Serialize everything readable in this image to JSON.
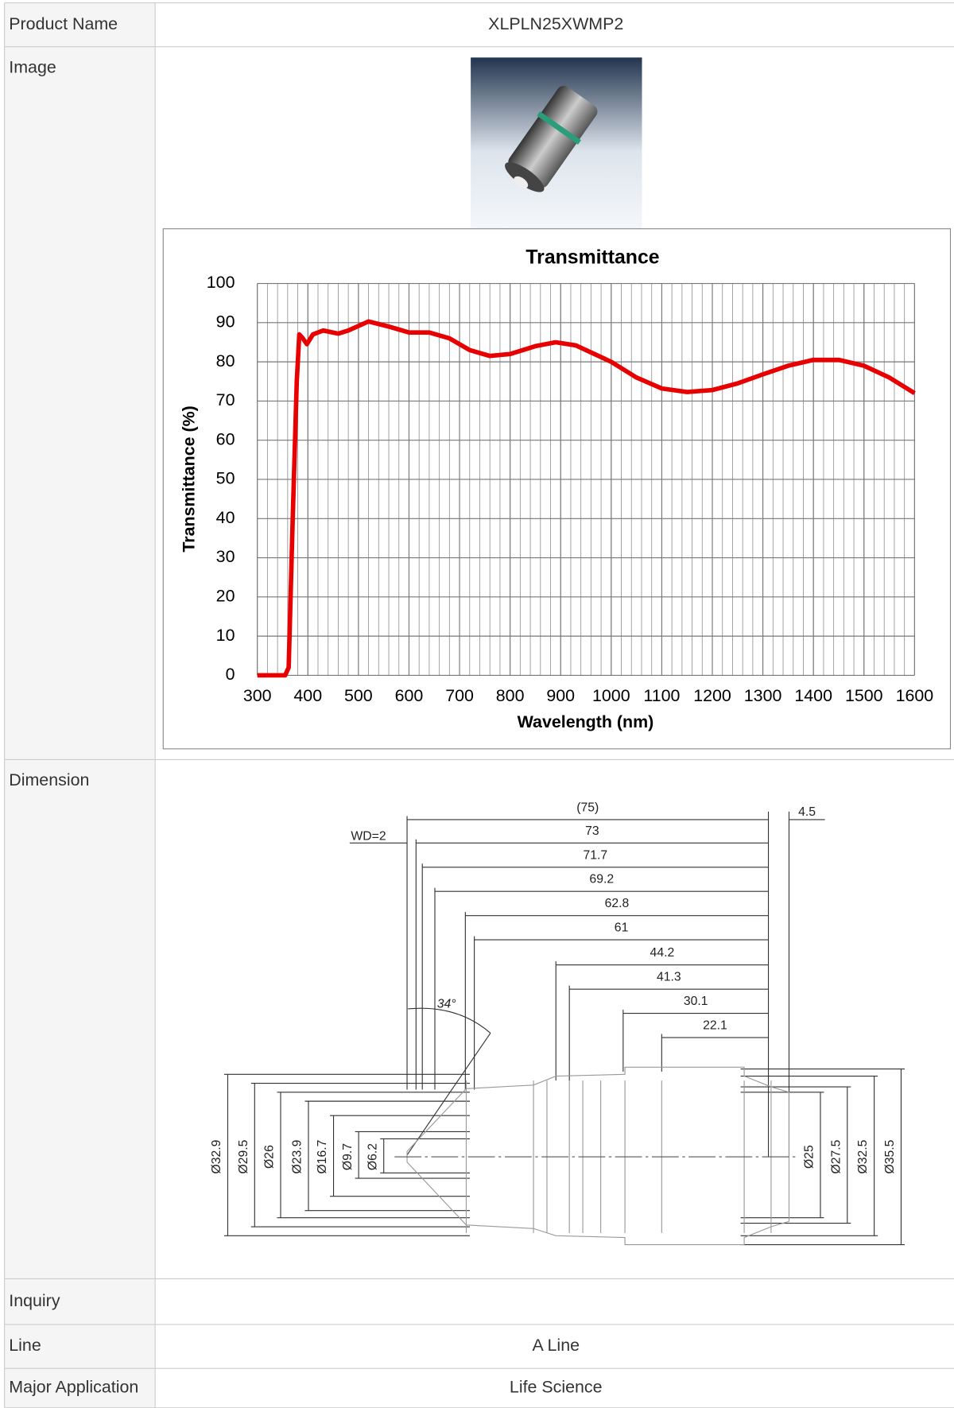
{
  "table": {
    "rows": [
      {
        "label": "Product Name",
        "value": "XLPLN25XWMP2"
      },
      {
        "label": "Image"
      },
      {
        "label": "Dimension"
      },
      {
        "label": "Inquiry"
      },
      {
        "label": "Line",
        "value": "A Line"
      },
      {
        "label": "Major Application",
        "value": "Life Science"
      }
    ]
  },
  "chart_data": {
    "type": "line",
    "title": "Transmittance",
    "x_label": "Wavelength (nm)",
    "y_label": "Transmittance (%)",
    "x": [
      300,
      355,
      362,
      370,
      378,
      383,
      390,
      398,
      410,
      430,
      460,
      480,
      520,
      560,
      600,
      640,
      680,
      720,
      760,
      800,
      850,
      890,
      930,
      1000,
      1050,
      1100,
      1150,
      1200,
      1250,
      1300,
      1350,
      1400,
      1450,
      1500,
      1550,
      1600
    ],
    "series": [
      {
        "name": "Transmittance",
        "color": "#e80000",
        "values": [
          0,
          0,
          2,
          40,
          75,
          87,
          86,
          84.5,
          87,
          88,
          87.2,
          88,
          90.3,
          89,
          87.5,
          87.5,
          86,
          83,
          81.5,
          82,
          84,
          85,
          84.2,
          80,
          76,
          73.2,
          72.3,
          72.8,
          74.5,
          76.8,
          79,
          80.5,
          80.5,
          79,
          76,
          72
        ]
      }
    ],
    "xlim": [
      300,
      1600
    ],
    "ylim": [
      0,
      100
    ],
    "xticks": [
      300,
      400,
      500,
      600,
      700,
      800,
      900,
      1000,
      1100,
      1200,
      1300,
      1400,
      1500,
      1600
    ],
    "yticks": [
      0,
      10,
      20,
      30,
      40,
      50,
      60,
      70,
      80,
      90,
      100
    ],
    "grid": true,
    "x_minor_grid_step": 20
  },
  "dimension": {
    "labels": [
      "(75)",
      "4.5",
      "WD=2",
      "73",
      "71.7",
      "69.2",
      "62.8",
      "61",
      "44.2",
      "41.3",
      "30.1",
      "22.1",
      "34°",
      "Ø32.9",
      "Ø29.5",
      "Ø26",
      "Ø23.9",
      "Ø16.7",
      "Ø9.7",
      "Ø6.2",
      "Ø25",
      "Ø27.5",
      "Ø32.5",
      "Ø35.5"
    ]
  }
}
